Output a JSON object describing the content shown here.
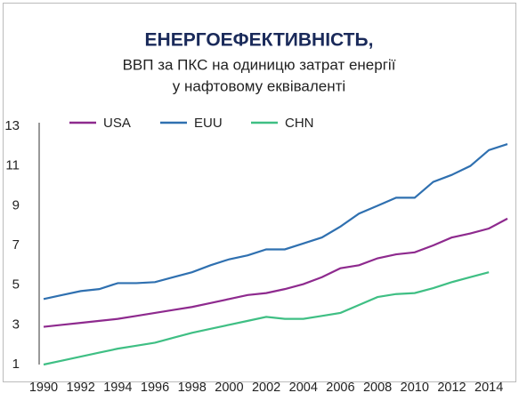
{
  "chart_data": {
    "type": "line",
    "title": "ЕНЕРГОЕФЕКТИВНІСТЬ,",
    "subtitle": [
      "ВВП за ПКС на одиницю затрат енергії",
      "у нафтовому еквіваленті"
    ],
    "x": [
      1990,
      1991,
      1992,
      1993,
      1994,
      1995,
      1996,
      1997,
      1998,
      1999,
      2000,
      2001,
      2002,
      2003,
      2004,
      2005,
      2006,
      2007,
      2008,
      2009,
      2010,
      2011,
      2012,
      2013,
      2014,
      2015
    ],
    "series": [
      {
        "name": "USA",
        "color": "#8e2a8e",
        "values": [
          2.9,
          3.0,
          3.1,
          3.2,
          3.3,
          3.45,
          3.6,
          3.75,
          3.9,
          4.1,
          4.3,
          4.5,
          4.6,
          4.8,
          5.05,
          5.4,
          5.85,
          6.0,
          6.35,
          6.55,
          6.65,
          7.0,
          7.4,
          7.6,
          7.85,
          8.35
        ]
      },
      {
        "name": "EUU",
        "color": "#2f70b0",
        "values": [
          4.3,
          4.5,
          4.7,
          4.8,
          5.1,
          5.1,
          5.15,
          5.4,
          5.65,
          6.0,
          6.3,
          6.5,
          6.8,
          6.8,
          7.1,
          7.4,
          7.95,
          8.6,
          9.0,
          9.4,
          9.4,
          10.2,
          10.55,
          11.0,
          11.8,
          12.1
        ]
      },
      {
        "name": "CHN",
        "color": "#3fbf84",
        "values": [
          1.0,
          1.2,
          1.4,
          1.6,
          1.8,
          1.95,
          2.1,
          2.35,
          2.6,
          2.8,
          3.0,
          3.2,
          3.4,
          3.3,
          3.3,
          3.45,
          3.6,
          4.0,
          4.4,
          4.55,
          4.6,
          4.85,
          5.15,
          5.4,
          5.65,
          null
        ]
      }
    ],
    "xlim": [
      1990,
      2015
    ],
    "xticks": [
      1990,
      1992,
      1994,
      1996,
      1998,
      2000,
      2002,
      2004,
      2006,
      2008,
      2010,
      2012,
      2014
    ],
    "ylim": [
      1,
      13
    ],
    "yticks": [
      1,
      3,
      5,
      7,
      9,
      11,
      13
    ],
    "legend": "top-left"
  }
}
